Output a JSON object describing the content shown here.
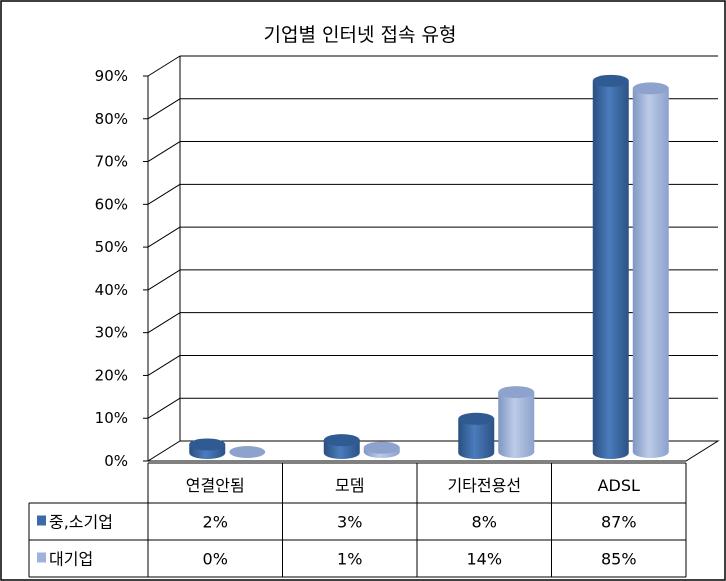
{
  "chart_data": {
    "type": "bar",
    "title": "기업별 인터넷 접속 유형",
    "categories": [
      "연결안됨",
      "모뎀",
      "기타전용선",
      "ADSL"
    ],
    "series": [
      {
        "name": "중,소기업",
        "values": [
          2,
          3,
          8,
          87
        ],
        "labels": [
          "2%",
          "3%",
          "8%",
          "87%"
        ],
        "color": "#3B6AA8"
      },
      {
        "name": "대기업",
        "values": [
          0,
          1,
          14,
          85
        ],
        "labels": [
          "0%",
          "1%",
          "14%",
          "85%"
        ],
        "color": "#9DB3DC"
      }
    ],
    "yticks": [
      "0%",
      "10%",
      "20%",
      "30%",
      "40%",
      "50%",
      "60%",
      "70%",
      "80%",
      "90%"
    ],
    "ylim": [
      0,
      90
    ],
    "grid": true,
    "legend": "data-table-left",
    "colors": {
      "gridline": "#000000",
      "outline": "#000000"
    }
  }
}
